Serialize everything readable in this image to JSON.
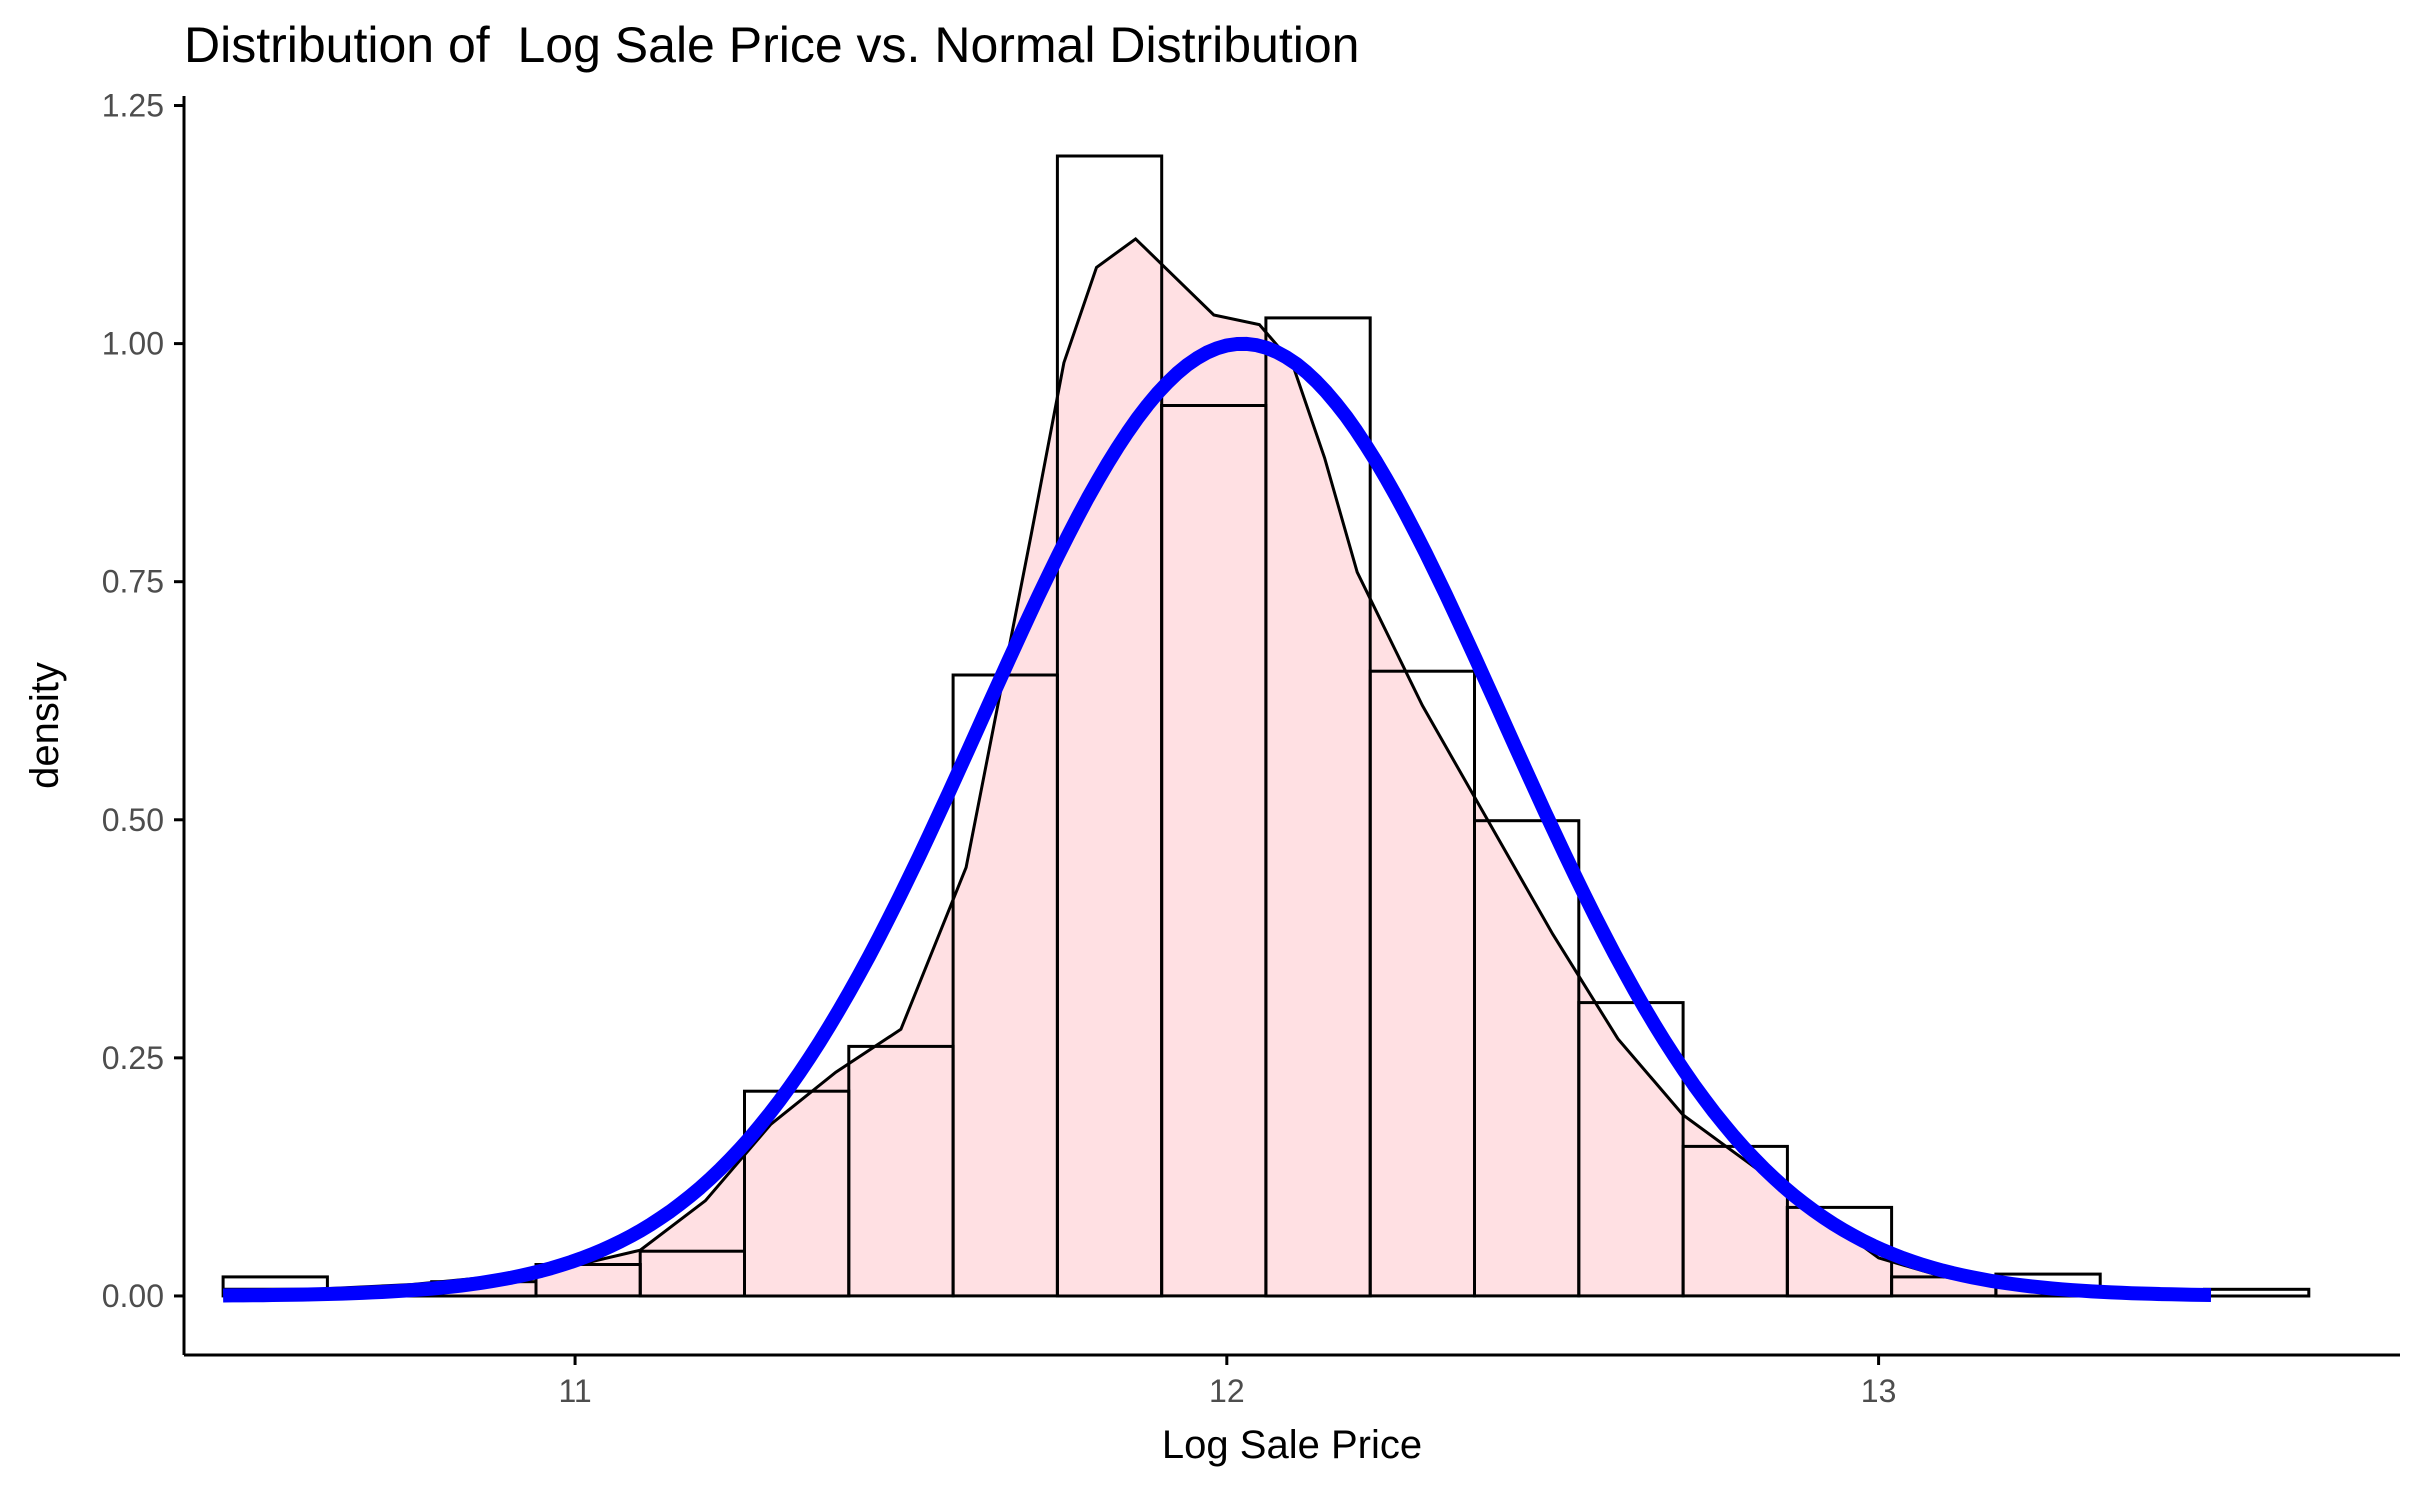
{
  "chart_data": {
    "type": "bar",
    "title": "Distribution of  Log Sale Price vs. Normal Distribution",
    "xlabel": "Log Sale Price",
    "ylabel": "density",
    "xlim": [
      10.4,
      13.8
    ],
    "ylim": [
      -0.062,
      1.26
    ],
    "x_ticks": [
      11,
      12,
      13
    ],
    "x_tick_labels": [
      "11",
      "12",
      "13"
    ],
    "y_ticks": [
      0,
      0.25,
      0.5,
      0.75,
      1.0,
      1.25
    ],
    "y_tick_labels": [
      "0.00",
      "0.25",
      "0.50",
      "0.75",
      "1.00",
      "1.25"
    ],
    "grid": false,
    "legend": "none",
    "colors": {
      "fill": "#ffe0e3",
      "bar_outline": "#000000",
      "density_line": "#000000",
      "normal_line": "#0000ff",
      "axis": "#000000",
      "tick_label": "#4d4d4d"
    },
    "series": [
      {
        "type": "histogram",
        "bins": [
          {
            "x0": 10.46,
            "x1": 10.62,
            "density": 0.02
          },
          {
            "x0": 10.62,
            "x1": 10.78,
            "density": 0.005
          },
          {
            "x0": 10.78,
            "x1": 10.94,
            "density": 0.015
          },
          {
            "x0": 10.94,
            "x1": 11.1,
            "density": 0.033
          },
          {
            "x0": 11.1,
            "x1": 11.26,
            "density": 0.047
          },
          {
            "x0": 11.26,
            "x1": 11.42,
            "density": 0.215
          },
          {
            "x0": 11.42,
            "x1": 11.58,
            "density": 0.262
          },
          {
            "x0": 11.58,
            "x1": 11.74,
            "density": 0.652
          },
          {
            "x0": 11.74,
            "x1": 11.9,
            "density": 1.197
          },
          {
            "x0": 11.9,
            "x1": 12.06,
            "density": 0.935
          },
          {
            "x0": 12.06,
            "x1": 12.22,
            "density": 1.027
          },
          {
            "x0": 12.22,
            "x1": 12.38,
            "density": 0.656
          },
          {
            "x0": 12.38,
            "x1": 12.54,
            "density": 0.499
          },
          {
            "x0": 12.54,
            "x1": 12.7,
            "density": 0.308
          },
          {
            "x0": 12.7,
            "x1": 12.86,
            "density": 0.157
          },
          {
            "x0": 12.86,
            "x1": 13.02,
            "density": 0.093
          },
          {
            "x0": 13.02,
            "x1": 13.18,
            "density": 0.02
          },
          {
            "x0": 13.18,
            "x1": 13.34,
            "density": 0.023
          },
          {
            "x0": 13.34,
            "x1": 13.5,
            "density": 0.003
          },
          {
            "x0": 13.5,
            "x1": 13.66,
            "density": 0.007
          }
        ]
      },
      {
        "type": "density",
        "points": [
          [
            10.46,
            0.007
          ],
          [
            10.6,
            0.007
          ],
          [
            10.75,
            0.012
          ],
          [
            10.9,
            0.022
          ],
          [
            11.0,
            0.032
          ],
          [
            11.1,
            0.048
          ],
          [
            11.2,
            0.1
          ],
          [
            11.3,
            0.18
          ],
          [
            11.4,
            0.235
          ],
          [
            11.5,
            0.28
          ],
          [
            11.6,
            0.45
          ],
          [
            11.7,
            0.8
          ],
          [
            11.75,
            0.98
          ],
          [
            11.8,
            1.08
          ],
          [
            11.86,
            1.11
          ],
          [
            11.92,
            1.07
          ],
          [
            11.98,
            1.03
          ],
          [
            12.05,
            1.02
          ],
          [
            12.1,
            0.98
          ],
          [
            12.15,
            0.88
          ],
          [
            12.2,
            0.76
          ],
          [
            12.3,
            0.62
          ],
          [
            12.4,
            0.5
          ],
          [
            12.5,
            0.38
          ],
          [
            12.6,
            0.27
          ],
          [
            12.7,
            0.19
          ],
          [
            12.8,
            0.14
          ],
          [
            12.9,
            0.09
          ],
          [
            13.0,
            0.04
          ],
          [
            13.1,
            0.02
          ],
          [
            13.2,
            0.013
          ],
          [
            13.3,
            0.008
          ],
          [
            13.4,
            0.004
          ],
          [
            13.5,
            0.002
          ]
        ]
      },
      {
        "type": "normal",
        "mean": 12.024,
        "sd": 0.399,
        "x_range": [
          10.46,
          13.51
        ]
      }
    ]
  }
}
